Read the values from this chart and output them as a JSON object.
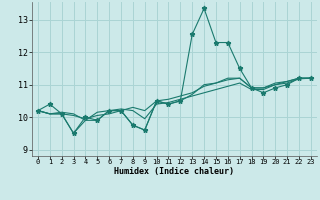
{
  "xlabel": "Humidex (Indice chaleur)",
  "bg_color": "#cce9e9",
  "grid_color": "#aad4d4",
  "line_color": "#1a7a6e",
  "xlim": [
    -0.5,
    23.5
  ],
  "ylim": [
    8.8,
    13.55
  ],
  "yticks": [
    9,
    10,
    11,
    12,
    13
  ],
  "xticks": [
    0,
    1,
    2,
    3,
    4,
    5,
    6,
    7,
    8,
    9,
    10,
    11,
    12,
    13,
    14,
    15,
    16,
    17,
    18,
    19,
    20,
    21,
    22,
    23
  ],
  "lines": [
    {
      "x": [
        0,
        1,
        2,
        3,
        4,
        5,
        6,
        7,
        8,
        9,
        10,
        11,
        12,
        13,
        14,
        15,
        16,
        17,
        18,
        19,
        20,
        21,
        22,
        23
      ],
      "y": [
        10.2,
        10.4,
        10.1,
        9.5,
        10.0,
        9.9,
        10.2,
        10.2,
        9.75,
        9.6,
        10.5,
        10.4,
        10.5,
        12.55,
        13.35,
        12.3,
        12.3,
        11.5,
        10.9,
        10.75,
        10.9,
        11.0,
        11.2,
        11.2
      ],
      "marker": true
    },
    {
      "x": [
        0,
        1,
        2,
        3,
        4,
        5,
        6,
        7,
        8,
        9,
        10,
        11,
        12,
        13,
        14,
        15,
        16,
        17,
        18,
        19,
        20,
        21,
        22,
        23
      ],
      "y": [
        10.2,
        10.1,
        10.15,
        10.1,
        9.9,
        10.15,
        10.2,
        10.25,
        10.2,
        9.95,
        10.4,
        10.45,
        10.55,
        10.65,
        10.75,
        10.85,
        10.95,
        11.05,
        10.85,
        10.85,
        11.0,
        11.05,
        11.18,
        11.2
      ],
      "marker": false
    },
    {
      "x": [
        0,
        1,
        2,
        3,
        4,
        5,
        6,
        7,
        8,
        9,
        10,
        11,
        12,
        13,
        14,
        15,
        16,
        17,
        18,
        19,
        20,
        21,
        22,
        23
      ],
      "y": [
        10.2,
        10.1,
        10.1,
        10.05,
        9.95,
        10.05,
        10.1,
        10.2,
        10.3,
        10.2,
        10.5,
        10.55,
        10.65,
        10.75,
        10.95,
        11.05,
        11.15,
        11.2,
        10.9,
        10.9,
        11.05,
        11.1,
        11.2,
        11.2
      ],
      "marker": false
    },
    {
      "x": [
        0,
        1,
        2,
        3,
        4,
        5,
        6,
        7,
        8,
        9,
        10,
        11,
        12,
        13,
        14,
        15,
        16,
        17,
        18,
        19,
        20,
        21,
        22,
        23
      ],
      "y": [
        10.2,
        10.1,
        10.1,
        9.5,
        9.9,
        9.9,
        10.2,
        10.2,
        9.75,
        9.6,
        10.5,
        10.4,
        10.5,
        10.7,
        11.0,
        11.05,
        11.2,
        11.2,
        10.9,
        10.9,
        11.0,
        11.1,
        11.2,
        11.2
      ],
      "marker": false
    }
  ]
}
